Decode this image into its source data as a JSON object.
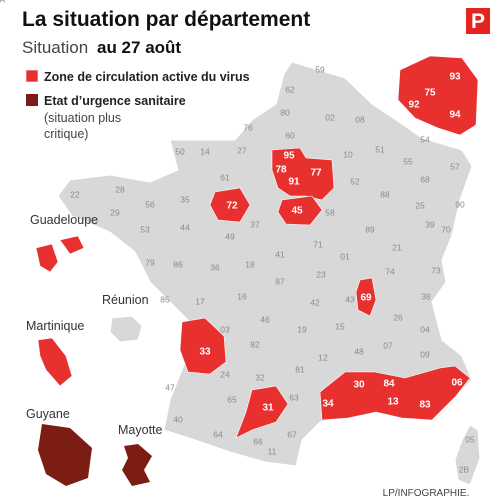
{
  "header": {
    "title": "La situation par département",
    "subtitle_prefix": "Situation",
    "subtitle_date": "au 27 août",
    "logo": "P"
  },
  "legend": [
    {
      "label": "Zone de circulation active du virus"
    },
    {
      "label": "Etat d’urgence sanitaire",
      "note": [
        "(situation plus",
        "critique)"
      ]
    }
  ],
  "map": {
    "red_departments": [
      "95",
      "78",
      "91",
      "77",
      "45",
      "72",
      "93",
      "75",
      "92",
      "94",
      "69",
      "33",
      "31",
      "34",
      "30",
      "84",
      "13",
      "83",
      "06"
    ],
    "other_departments": [
      "62",
      "59",
      "80",
      "02",
      "08",
      "76",
      "60",
      "27",
      "14",
      "50",
      "61",
      "28",
      "22",
      "29",
      "56",
      "35",
      "53",
      "44",
      "49",
      "37",
      "41",
      "18",
      "36",
      "86",
      "79",
      "85",
      "17",
      "16",
      "87",
      "23",
      "03",
      "24",
      "47",
      "40",
      "64",
      "65",
      "32",
      "82",
      "46",
      "19",
      "15",
      "43",
      "42",
      "63",
      "81",
      "12",
      "48",
      "07",
      "26",
      "38",
      "73",
      "74",
      "01",
      "71",
      "58",
      "89",
      "21",
      "39",
      "25",
      "70",
      "90",
      "68",
      "88",
      "52",
      "10",
      "51",
      "55",
      "54",
      "57",
      "67",
      "11",
      "66",
      "09",
      "04",
      "05",
      "2B",
      "2A"
    ],
    "overseas": [
      "Guadeloupe",
      "Réunion",
      "Martinique",
      "Guyane",
      "Mayotte"
    ]
  },
  "credit": "LP/INFOGRAPHIE."
}
